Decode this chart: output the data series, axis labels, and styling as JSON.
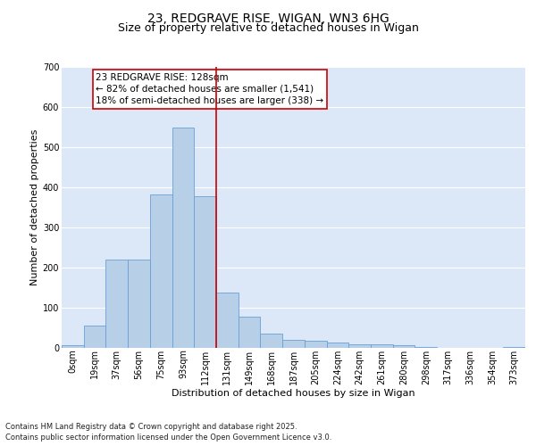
{
  "title1": "23, REDGRAVE RISE, WIGAN, WN3 6HG",
  "title2": "Size of property relative to detached houses in Wigan",
  "xlabel": "Distribution of detached houses by size in Wigan",
  "ylabel": "Number of detached properties",
  "bar_labels": [
    "0sqm",
    "19sqm",
    "37sqm",
    "56sqm",
    "75sqm",
    "93sqm",
    "112sqm",
    "131sqm",
    "149sqm",
    "168sqm",
    "187sqm",
    "205sqm",
    "224sqm",
    "242sqm",
    "261sqm",
    "280sqm",
    "298sqm",
    "317sqm",
    "336sqm",
    "354sqm",
    "373sqm"
  ],
  "bar_values": [
    6,
    55,
    220,
    220,
    383,
    548,
    377,
    138,
    78,
    35,
    20,
    17,
    13,
    10,
    10,
    7,
    2,
    1,
    1,
    0,
    3
  ],
  "bar_color": "#b8cfe8",
  "bar_edge_color": "#6a9fd8",
  "vline_x": 6.5,
  "vline_color": "#cc0000",
  "annotation_text": "23 REDGRAVE RISE: 128sqm\n← 82% of detached houses are smaller (1,541)\n18% of semi-detached houses are larger (338) →",
  "annotation_box_color": "#ffffff",
  "annotation_box_edgecolor": "#cc0000",
  "ylim": [
    0,
    700
  ],
  "yticks": [
    0,
    100,
    200,
    300,
    400,
    500,
    600,
    700
  ],
  "background_color": "#dce8f8",
  "grid_color": "#ffffff",
  "footer": "Contains HM Land Registry data © Crown copyright and database right 2025.\nContains public sector information licensed under the Open Government Licence v3.0.",
  "title1_fontsize": 10,
  "title2_fontsize": 9,
  "xlabel_fontsize": 8,
  "ylabel_fontsize": 8,
  "tick_fontsize": 7,
  "annotation_fontsize": 7.5,
  "footer_fontsize": 6
}
